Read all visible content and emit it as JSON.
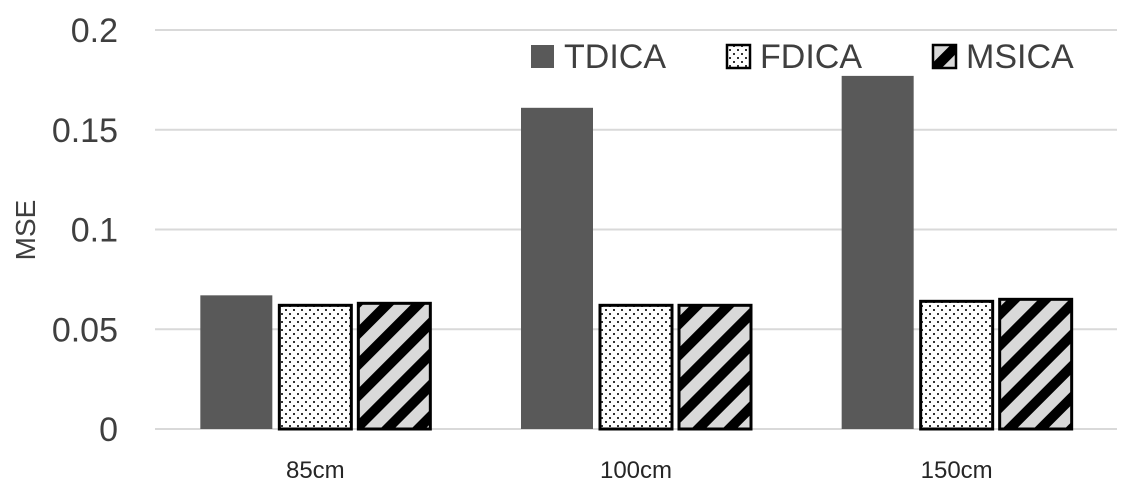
{
  "chart_data": {
    "type": "bar",
    "title": "",
    "xlabel": "",
    "ylabel": "MSE",
    "ylim": [
      0,
      0.2
    ],
    "yticks": [
      "0",
      "0.05",
      "0.1",
      "0.15",
      "0.2"
    ],
    "grid": true,
    "legend_position": "top-right",
    "categories": [
      "85cm",
      "100cm",
      "150cm"
    ],
    "series": [
      {
        "name": "TDICA",
        "values": [
          0.067,
          0.161,
          0.177
        ],
        "color": "#595959",
        "pattern": "solid"
      },
      {
        "name": "FDICA",
        "values": [
          0.062,
          0.062,
          0.064
        ],
        "color": "#ffffff",
        "pattern": "dots"
      },
      {
        "name": "MSICA",
        "values": [
          0.063,
          0.062,
          0.065
        ],
        "color": "#ffffff",
        "pattern": "diagonal-stripes"
      }
    ]
  }
}
